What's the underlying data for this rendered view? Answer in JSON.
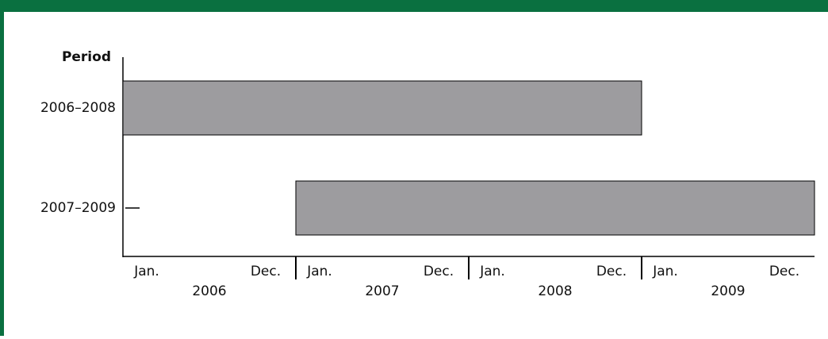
{
  "chart_data": {
    "type": "gantt",
    "y_label": "Period",
    "categories": [
      "2006–2008",
      "2007–2009"
    ],
    "start": [
      2006,
      2007
    ],
    "end": [
      2009,
      2010
    ],
    "color": "#9d9c9f",
    "xlim": [
      2006,
      2010
    ],
    "years": [
      "2006",
      "2007",
      "2008",
      "2009"
    ],
    "month_labels": [
      "Jan.",
      "Dec."
    ]
  }
}
